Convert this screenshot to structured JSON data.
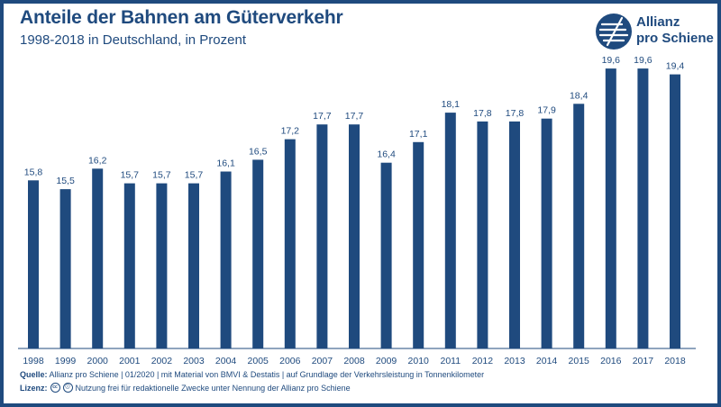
{
  "header": {
    "title": "Anteile der Bahnen am Güterverkehr",
    "subtitle": "1998-2018 in Deutschland, in Prozent"
  },
  "logo": {
    "line1": "Allianz",
    "line2": "pro Schiene"
  },
  "footer": {
    "source_label": "Quelle:",
    "source_text": "Allianz pro Schiene | 01/2020 | mit Material von BMVI & Destatis | auf Grundlage der Verkehrsleistung in Tonnenkilometer",
    "license_label": "Lizenz:",
    "license_icon_1": "cc",
    "license_icon_2": "ⓘ",
    "license_text": "Nutzung frei für redaktionelle Zwecke unter Nennung der Allianz pro Schiene"
  },
  "colors": {
    "brand": "#1f4a7e",
    "bar": "#1f4a7e"
  },
  "chart_data": {
    "type": "bar",
    "title": "Anteile der Bahnen am Güterverkehr",
    "subtitle": "1998-2018 in Deutschland, in Prozent",
    "categories": [
      "1998",
      "1999",
      "2000",
      "2001",
      "2002",
      "2003",
      "2004",
      "2005",
      "2006",
      "2007",
      "2008",
      "2009",
      "2010",
      "2011",
      "2012",
      "2013",
      "2014",
      "2015",
      "2016",
      "2017",
      "2018"
    ],
    "values": [
      15.8,
      15.5,
      16.2,
      15.7,
      15.7,
      15.7,
      16.1,
      16.5,
      17.2,
      17.7,
      17.7,
      16.4,
      17.1,
      18.1,
      17.8,
      17.8,
      17.9,
      18.4,
      19.6,
      19.6,
      19.4
    ],
    "value_labels": [
      "15,8",
      "15,5",
      "16,2",
      "15,7",
      "15,7",
      "15,7",
      "16,1",
      "16,5",
      "17,2",
      "17,7",
      "17,7",
      "16,4",
      "17,1",
      "18,1",
      "17,8",
      "17,8",
      "17,9",
      "18,4",
      "19,6",
      "19,6",
      "19,4"
    ],
    "xlabel": "",
    "ylabel": "",
    "grid": false,
    "legend": "none"
  }
}
